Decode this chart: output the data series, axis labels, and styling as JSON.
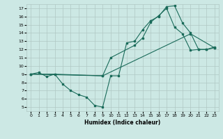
{
  "xlabel": "Humidex (Indice chaleur)",
  "background_color": "#cce8e4",
  "grid_color": "#b0c8c4",
  "line_color": "#1a6b5a",
  "xlim": [
    -0.5,
    23.5
  ],
  "ylim": [
    4.5,
    17.5
  ],
  "xticks": [
    0,
    1,
    2,
    3,
    4,
    5,
    6,
    7,
    8,
    9,
    10,
    11,
    12,
    13,
    14,
    15,
    16,
    17,
    18,
    19,
    20,
    21,
    22,
    23
  ],
  "yticks": [
    5,
    6,
    7,
    8,
    9,
    10,
    11,
    12,
    13,
    14,
    15,
    16,
    17
  ],
  "line1_x": [
    0,
    1,
    2,
    3,
    4,
    5,
    6,
    7,
    8,
    9,
    10,
    11,
    12,
    13,
    14,
    15,
    16,
    17,
    18,
    19,
    20,
    21,
    22,
    23
  ],
  "line1_y": [
    9,
    9.2,
    8.7,
    9.0,
    7.8,
    7.0,
    6.5,
    6.2,
    5.2,
    5.0,
    8.8,
    8.8,
    12.8,
    13.0,
    14.4,
    15.5,
    16.0,
    17.2,
    17.3,
    15.2,
    14.0,
    12.0,
    12.0,
    12.3
  ],
  "line2_x": [
    0,
    3,
    9,
    10,
    13,
    14,
    15,
    16,
    17,
    18,
    19,
    20,
    21,
    22,
    23
  ],
  "line2_y": [
    9,
    9.0,
    8.8,
    11.0,
    12.5,
    13.4,
    15.3,
    16.1,
    17.0,
    14.7,
    13.9,
    11.9,
    12.0,
    12.0,
    12.2
  ],
  "line3_x": [
    0,
    9,
    20,
    23
  ],
  "line3_y": [
    9,
    8.8,
    13.9,
    12.2
  ]
}
